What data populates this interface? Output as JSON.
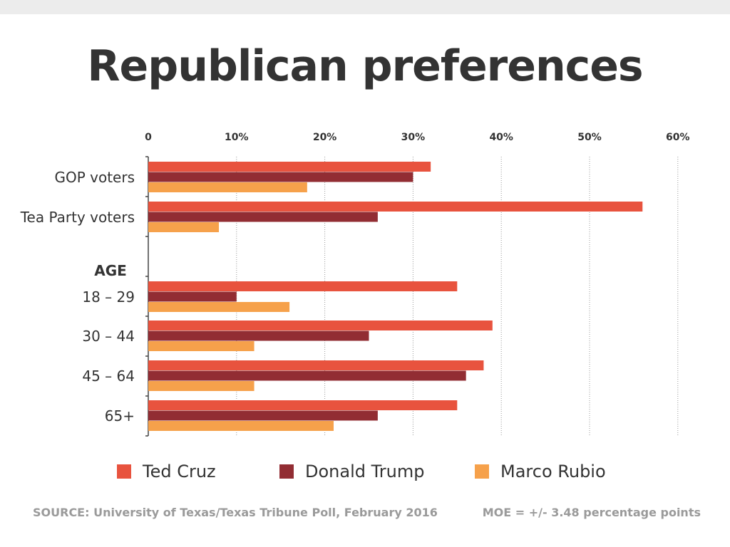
{
  "title": "Republican preferences",
  "colors": {
    "cruz": "#e8533e",
    "trump": "#922d33",
    "rubio": "#f6a14b",
    "text": "#333333",
    "muted": "#9a9a9a"
  },
  "chart_data": {
    "type": "bar",
    "orientation": "horizontal",
    "title": "Republican preferences",
    "x_ticks": [
      "0",
      "10%",
      "20%",
      "30%",
      "40%",
      "50%",
      "60%"
    ],
    "xlim": [
      0,
      60
    ],
    "section_label": "AGE",
    "categories": [
      "GOP voters",
      "Tea Party voters",
      "18 – 29",
      "30 – 44",
      "45 – 64",
      "65+"
    ],
    "series": [
      {
        "name": "Ted Cruz",
        "values": [
          32,
          56,
          35,
          39,
          38,
          35
        ]
      },
      {
        "name": "Donald Trump",
        "values": [
          30,
          26,
          10,
          25,
          36,
          26
        ]
      },
      {
        "name": "Marco Rubio",
        "values": [
          18,
          8,
          16,
          12,
          12,
          21
        ]
      }
    ],
    "grid": true,
    "legend_position": "bottom"
  },
  "legend": {
    "cruz": "Ted Cruz",
    "trump": "Donald Trump",
    "rubio": "Marco Rubio"
  },
  "footer": {
    "source": "SOURCE: University of Texas/Texas Tribune Poll, February 2016",
    "moe": "MOE = +/- 3.48 percentage points"
  }
}
